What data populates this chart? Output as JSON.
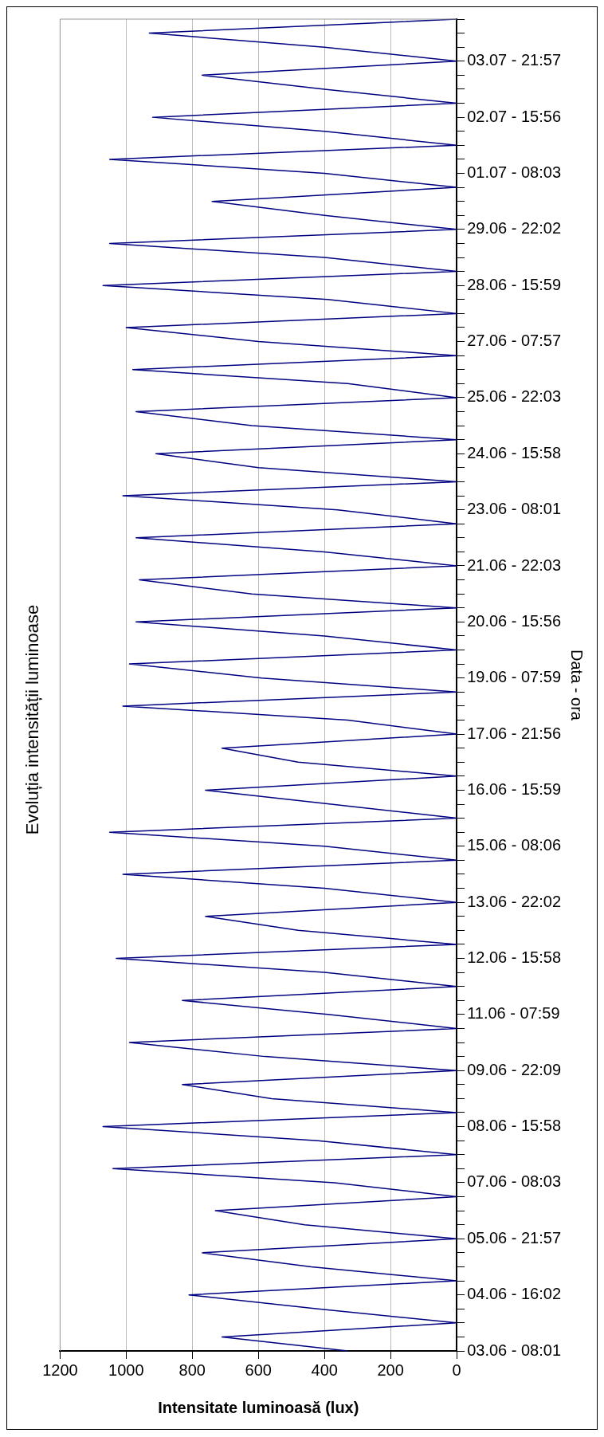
{
  "chart_data": {
    "type": "line",
    "title": "Evoluția intensității luminoase",
    "xlabel": "Intensitate luminoasă (lux)",
    "ylabel": "Data - ora",
    "categories": [
      null,
      null,
      null,
      "03.07 - 21:57",
      null,
      null,
      null,
      "02.07 - 15:56",
      null,
      null,
      null,
      "01.07 - 08:03",
      null,
      null,
      null,
      "29.06 - 22:02",
      null,
      null,
      null,
      "28.06 - 15:59",
      null,
      null,
      null,
      "27.06 - 07:57",
      null,
      null,
      null,
      "25.06 - 22:03",
      null,
      null,
      null,
      "24.06 - 15:58",
      null,
      null,
      null,
      "23.06 - 08:01",
      null,
      null,
      null,
      "21.06 - 22:03",
      null,
      null,
      null,
      "20.06 - 15:56",
      null,
      null,
      null,
      "19.06 - 07:59",
      null,
      null,
      null,
      "17.06 - 21:56",
      null,
      null,
      null,
      "16.06 - 15:59",
      null,
      null,
      null,
      "15.06 - 08:06",
      null,
      null,
      null,
      "13.06 - 22:02",
      null,
      null,
      null,
      "12.06 - 15:58",
      null,
      null,
      null,
      "11.06 - 07:59",
      null,
      null,
      null,
      "09.06 - 22:09",
      null,
      null,
      null,
      "08.06 - 15:58",
      null,
      null,
      null,
      "07.06 - 08:03",
      null,
      null,
      null,
      "05.06 - 21:57",
      null,
      null,
      null,
      "04.06 - 16:02",
      null,
      null,
      null,
      "03.06 - 08:01"
    ],
    "series": [
      {
        "color": "#000080",
        "values": [
          0,
          930,
          400,
          0,
          770,
          400,
          0,
          920,
          400,
          0,
          1050,
          400,
          0,
          740,
          400,
          0,
          1050,
          400,
          0,
          1070,
          390,
          0,
          1000,
          600,
          0,
          980,
          330,
          0,
          970,
          620,
          0,
          910,
          600,
          0,
          1010,
          360,
          0,
          970,
          400,
          0,
          960,
          620,
          0,
          970,
          400,
          0,
          990,
          590,
          0,
          1010,
          330,
          0,
          710,
          480,
          0,
          760,
          380,
          0,
          1050,
          400,
          0,
          1010,
          400,
          0,
          760,
          480,
          0,
          1030,
          400,
          0,
          830,
          390,
          0,
          990,
          580,
          0,
          830,
          560,
          0,
          1070,
          420,
          0,
          1040,
          370,
          0,
          730,
          460,
          0,
          770,
          440,
          0,
          810,
          420,
          0,
          710,
          330
        ]
      }
    ],
    "orientation": "horizontal",
    "xlim": [
      1200,
      0
    ],
    "xticks": [
      0,
      200,
      400,
      600,
      800,
      1000,
      1200
    ],
    "grid": "x",
    "legend": false,
    "marker": "none",
    "line_style": "solid"
  }
}
